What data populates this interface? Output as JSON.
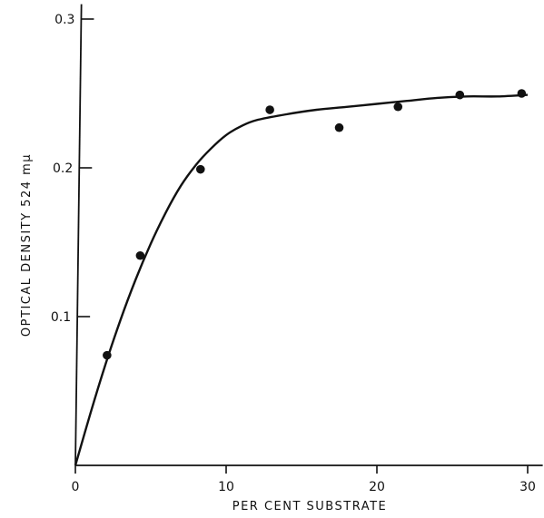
{
  "chart_data": {
    "type": "scatter",
    "title": "",
    "xlabel": "PER CENT SUBSTRATE",
    "ylabel": "OPTICAL DENSITY  524 mμ",
    "xlim": [
      0,
      31
    ],
    "ylim": [
      0,
      0.31
    ],
    "x_ticks": [
      0,
      10,
      20,
      30
    ],
    "x_tick_labels": [
      "0",
      "10",
      "20",
      "30"
    ],
    "y_ticks": [
      0.1,
      0.2,
      0.3
    ],
    "y_tick_labels": [
      "0.1",
      "0.2",
      "0.3"
    ],
    "grid": false,
    "series": [
      {
        "points": [
          {
            "x": 2.1,
            "y": 0.074
          },
          {
            "x": 4.3,
            "y": 0.141
          },
          {
            "x": 8.3,
            "y": 0.199
          },
          {
            "x": 12.9,
            "y": 0.239
          },
          {
            "x": 17.5,
            "y": 0.227
          },
          {
            "x": 21.4,
            "y": 0.241
          },
          {
            "x": 25.5,
            "y": 0.249
          },
          {
            "x": 29.6,
            "y": 0.25
          }
        ]
      }
    ],
    "fitted_curve": {
      "x": [
        0,
        1,
        2,
        3,
        4,
        5,
        6,
        7,
        8,
        9,
        10,
        11,
        12,
        14,
        16,
        18,
        20,
        22,
        24,
        26,
        28,
        30
      ],
      "y": [
        0,
        0.035,
        0.068,
        0.098,
        0.125,
        0.149,
        0.17,
        0.188,
        0.202,
        0.213,
        0.222,
        0.228,
        0.232,
        0.236,
        0.239,
        0.241,
        0.243,
        0.245,
        0.247,
        0.248,
        0.248,
        0.249
      ]
    },
    "colors": {
      "ink": "#111111",
      "background": "#ffffff"
    }
  }
}
